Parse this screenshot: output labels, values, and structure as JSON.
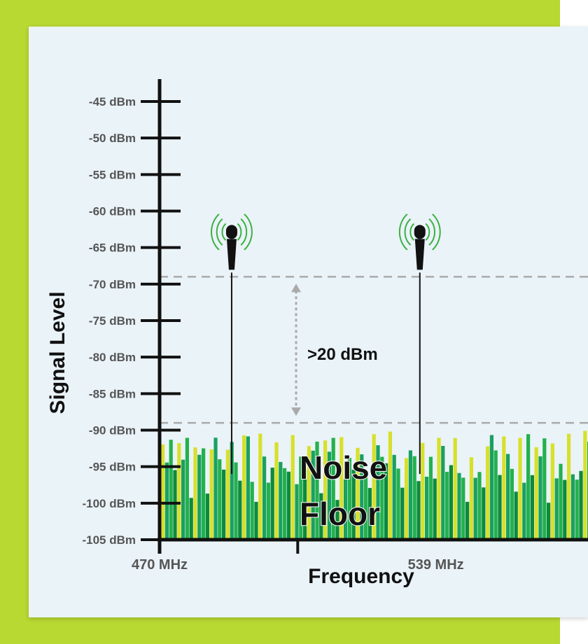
{
  "chart_data": {
    "type": "bar",
    "title": "",
    "ylabel": "Signal Level",
    "xlabel": "Frequency",
    "ylim": [
      -105,
      -45
    ],
    "y_ticks": [
      -45,
      -50,
      -55,
      -60,
      -65,
      -70,
      -75,
      -80,
      -85,
      -90,
      -95,
      -100,
      -105
    ],
    "y_unit": "dBm",
    "x_ticks": [
      {
        "value": 470,
        "label": "470 MHz"
      },
      {
        "value": 539,
        "label": "539 MHz"
      }
    ],
    "x_range": [
      470,
      577
    ],
    "noise_floor": {
      "label_line1": "Noise",
      "label_line2": "Floor",
      "range_dbm": [
        -105,
        -89
      ]
    },
    "threshold_lines_dbm": [
      -69,
      -89
    ],
    "gap_annotation": ">20 dBm",
    "mic_signals": [
      {
        "frequency": 488,
        "level_dbm": -69
      },
      {
        "frequency": 535,
        "level_dbm": -69
      }
    ],
    "colors": {
      "bar_light": "#d7e02a",
      "bar_mid": "#1aa060",
      "bar_green": "#23b14d",
      "bar_dark": "#0c8a3c",
      "mic_wave": "#3cb043",
      "dashed_line": "#aaaaaa",
      "frame": "#b8d832"
    }
  }
}
